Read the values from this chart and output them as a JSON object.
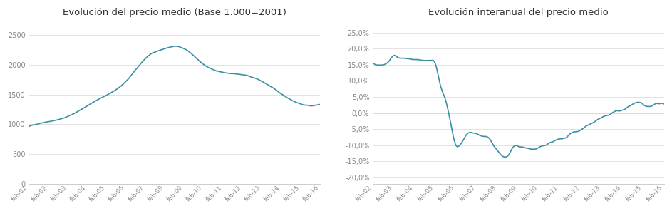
{
  "title1": "Evolución del precio medio (Base 1.000=2001)",
  "title2": "Evolución interanual del precio medio",
  "background_color": "#ffffff",
  "line_color": "#3a8fa3",
  "line_width": 1.2,
  "chart1": {
    "x_labels": [
      "feb-01",
      "feb-02",
      "feb-03",
      "feb-04",
      "feb-05",
      "feb-06",
      "feb-07",
      "feb-08",
      "feb-09",
      "feb-10",
      "feb-11",
      "feb-12",
      "feb-13",
      "feb-14",
      "feb-15",
      "feb-16"
    ],
    "ylim": [
      0,
      2700
    ],
    "yticks": [
      0,
      500,
      1000,
      1500,
      2000,
      2500
    ],
    "key_x": [
      0,
      12,
      24,
      36,
      48,
      60,
      72,
      84,
      88,
      96,
      108,
      120,
      132,
      144,
      156,
      168,
      180
    ],
    "key_y": [
      960,
      1045,
      1130,
      1310,
      1490,
      1720,
      2105,
      2270,
      2300,
      2270,
      2000,
      1870,
      1830,
      1720,
      1510,
      1340,
      1338
    ]
  },
  "chart2": {
    "x_labels": [
      "feb-02",
      "feb-03",
      "feb-04",
      "feb-05",
      "feb-06",
      "feb-07",
      "feb-08",
      "feb-09",
      "feb-10",
      "feb-11",
      "feb-12",
      "feb-13",
      "feb-14",
      "feb-15",
      "feb-16"
    ],
    "ylim": [
      -0.22,
      0.28
    ],
    "yticks": [
      -0.2,
      -0.15,
      -0.1,
      -0.05,
      0.0,
      0.05,
      0.1,
      0.15,
      0.2,
      0.25
    ],
    "key_x": [
      0,
      6,
      12,
      18,
      24,
      30,
      36,
      42,
      48,
      54,
      60,
      66,
      72,
      78,
      84,
      90,
      96,
      102,
      108,
      114,
      120,
      126,
      132,
      138,
      144,
      150,
      156,
      162,
      168
    ],
    "key_y": [
      0.155,
      0.15,
      0.152,
      0.16,
      0.178,
      0.172,
      0.17,
      0.168,
      0.165,
      0.165,
      0.165,
      0.163,
      0.155,
      0.085,
      0.04,
      -0.035,
      -0.1,
      -0.093,
      -0.068,
      -0.062,
      -0.065,
      -0.072,
      -0.075,
      -0.095,
      -0.118,
      -0.135,
      -0.133,
      -0.108,
      -0.105
    ]
  },
  "chart2_extra": {
    "key_x2": [
      168,
      174,
      180,
      186,
      192,
      198,
      204,
      210,
      216,
      222,
      228,
      234,
      240,
      246,
      252,
      258,
      264,
      270,
      276,
      282,
      288,
      294,
      300,
      306,
      312,
      318,
      324,
      330,
      336
    ],
    "key_y2": [
      -0.105,
      -0.108,
      -0.11,
      -0.112,
      -0.108,
      -0.1,
      -0.092,
      -0.087,
      -0.082,
      -0.078,
      -0.065,
      -0.058,
      -0.052,
      -0.042,
      -0.033,
      -0.025,
      -0.015,
      -0.008,
      0.0,
      0.006,
      0.01,
      0.018,
      0.028,
      0.032,
      0.027,
      0.02,
      0.025,
      0.03,
      0.027
    ]
  }
}
